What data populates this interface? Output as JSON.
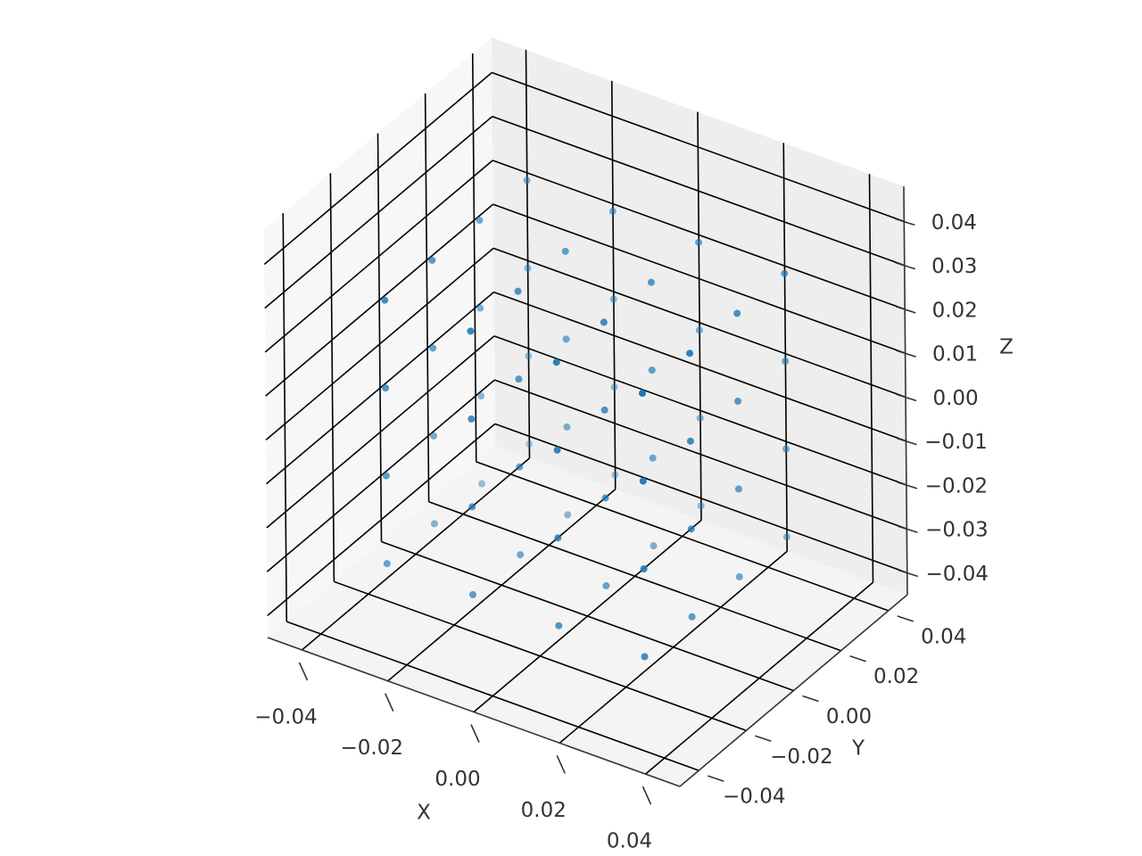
{
  "chart_data": {
    "type": "scatter3d",
    "xlabel": "X",
    "ylabel": "Y",
    "zlabel": "Z",
    "color": "#1f77b4",
    "xlim": [
      -0.048,
      0.048
    ],
    "ylim": [
      -0.048,
      0.048
    ],
    "zlim": [
      -0.045,
      0.048
    ],
    "xticks": [
      {
        "value": -0.04,
        "label": "−0.04"
      },
      {
        "value": -0.02,
        "label": "−0.02"
      },
      {
        "value": 0,
        "label": "0.00"
      },
      {
        "value": 0.02,
        "label": "0.02"
      },
      {
        "value": 0.04,
        "label": "0.04"
      }
    ],
    "yticks": [
      {
        "value": -0.04,
        "label": "−0.04"
      },
      {
        "value": -0.02,
        "label": "−0.02"
      },
      {
        "value": 0,
        "label": "0.00"
      },
      {
        "value": 0.02,
        "label": "0.02"
      },
      {
        "value": 0.04,
        "label": "0.04"
      }
    ],
    "zticks": [
      {
        "value": -0.04,
        "label": "−0.04"
      },
      {
        "value": -0.03,
        "label": "−0.03"
      },
      {
        "value": -0.02,
        "label": "−0.02"
      },
      {
        "value": -0.01,
        "label": "−0.01"
      },
      {
        "value": 0,
        "label": "0.00"
      },
      {
        "value": 0.01,
        "label": "0.01"
      },
      {
        "value": 0.02,
        "label": "0.02"
      },
      {
        "value": 0.03,
        "label": "0.03"
      },
      {
        "value": 0.04,
        "label": "0.04"
      }
    ],
    "x": [
      -0.03,
      -0.03,
      -0.03,
      -0.03,
      -0.03,
      -0.03,
      -0.03,
      -0.03,
      -0.03,
      -0.03,
      -0.03,
      -0.03,
      -0.03,
      -0.03,
      -0.03,
      -0.03,
      -0.01,
      -0.01,
      -0.01,
      -0.01,
      -0.01,
      -0.01,
      -0.01,
      -0.01,
      -0.01,
      -0.01,
      -0.01,
      -0.01,
      -0.01,
      -0.01,
      -0.01,
      -0.01,
      0.01,
      0.01,
      0.01,
      0.01,
      0.01,
      0.01,
      0.01,
      0.01,
      0.01,
      0.01,
      0.01,
      0.01,
      0.01,
      0.01,
      0.01,
      0.01,
      0.03,
      0.03,
      0.03,
      0.03,
      0.03,
      0.03,
      0.03,
      0.03,
      0.03,
      0.03,
      0.03,
      0.03,
      0.03,
      0.03,
      0.03,
      0.03
    ],
    "y": [
      -0.03,
      -0.03,
      -0.03,
      -0.03,
      -0.01,
      -0.01,
      -0.01,
      -0.01,
      0.01,
      0.01,
      0.01,
      0.01,
      0.03,
      0.03,
      0.03,
      0.03,
      -0.03,
      -0.03,
      -0.03,
      -0.03,
      -0.01,
      -0.01,
      -0.01,
      -0.01,
      0.01,
      0.01,
      0.01,
      0.01,
      0.03,
      0.03,
      0.03,
      0.03,
      -0.03,
      -0.03,
      -0.03,
      -0.03,
      -0.01,
      -0.01,
      -0.01,
      -0.01,
      0.01,
      0.01,
      0.01,
      0.01,
      0.03,
      0.03,
      0.03,
      0.03,
      -0.03,
      -0.03,
      -0.03,
      -0.03,
      -0.01,
      -0.01,
      -0.01,
      -0.01,
      0.01,
      0.01,
      0.01,
      0.01,
      0.03,
      0.03,
      0.03,
      0.03
    ],
    "z": [
      -0.03,
      -0.01,
      0.01,
      0.03,
      -0.03,
      -0.01,
      0.01,
      0.03,
      -0.03,
      -0.01,
      0.01,
      0.03,
      -0.03,
      -0.01,
      0.01,
      0.03,
      -0.03,
      -0.01,
      0.01,
      0.03,
      -0.03,
      -0.01,
      0.01,
      0.03,
      -0.03,
      -0.01,
      0.01,
      0.03,
      -0.03,
      -0.01,
      0.01,
      0.03,
      -0.03,
      -0.01,
      0.01,
      0.03,
      -0.03,
      -0.01,
      0.01,
      0.03,
      -0.03,
      -0.01,
      0.01,
      0.03,
      -0.03,
      -0.01,
      0.01,
      0.03,
      -0.03,
      -0.01,
      0.01,
      0.03,
      -0.03,
      -0.01,
      0.01,
      0.03,
      -0.03,
      -0.01,
      0.01,
      0.03,
      -0.03,
      -0.01,
      0.01,
      0.03
    ]
  }
}
